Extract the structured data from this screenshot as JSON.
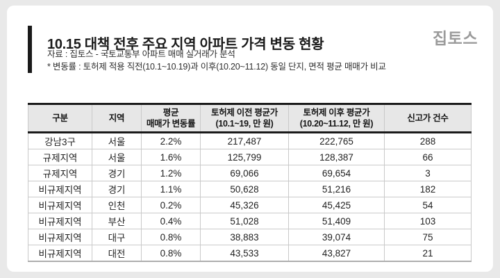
{
  "page": {
    "title": "10.15 대책 전후 주요 지역 아파트 가격 변동 현황",
    "source_line": "자료 : 집토스 - 국토교통부 아파트 매매 실거래가 분석",
    "note_line": "* 변동률 : 토허제 적용 직전(10.1~10.19)과 이후(10.20~11.12) 동일 단지, 면적 평균 매매가 비교",
    "logo_text": "집토스"
  },
  "chart_data": {
    "type": "table",
    "title": "10.15 대책 전후 주요 지역 아파트 가격 변동 현황",
    "columns": [
      {
        "line1": "구분",
        "line2": ""
      },
      {
        "line1": "지역",
        "line2": ""
      },
      {
        "line1": "평균",
        "line2": "매매가 변동률"
      },
      {
        "line1": "토허제 이전 평균가",
        "line2": "(10.1~19, 만 원)"
      },
      {
        "line1": "토허제 이후 평균가",
        "line2": "(10.20~11.12, 만 원)"
      },
      {
        "line1": "신고가 건수",
        "line2": ""
      }
    ],
    "rows": [
      [
        "강남3구",
        "서울",
        "2.2%",
        "217,487",
        "222,765",
        "288"
      ],
      [
        "규제지역",
        "서울",
        "1.6%",
        "125,799",
        "128,387",
        "66"
      ],
      [
        "규제지역",
        "경기",
        "1.2%",
        "69,066",
        "69,654",
        "3"
      ],
      [
        "비규제지역",
        "경기",
        "1.1%",
        "50,628",
        "51,216",
        "182"
      ],
      [
        "비규제지역",
        "인천",
        "0.2%",
        "45,326",
        "45,425",
        "54"
      ],
      [
        "비규제지역",
        "부산",
        "0.4%",
        "51,028",
        "51,409",
        "103"
      ],
      [
        "비규제지역",
        "대구",
        "0.8%",
        "38,883",
        "39,074",
        "75"
      ],
      [
        "비규제지역",
        "대전",
        "0.8%",
        "43,533",
        "43,827",
        "21"
      ]
    ]
  },
  "colors": {
    "page_background": "#e9e9e9",
    "card_background": "#ffffff",
    "accent_bar": "#1a1a1a",
    "header_background": "#e7e7e7",
    "grid_line": "#c9c9c9",
    "logo_gray": "#9b9b9b"
  }
}
